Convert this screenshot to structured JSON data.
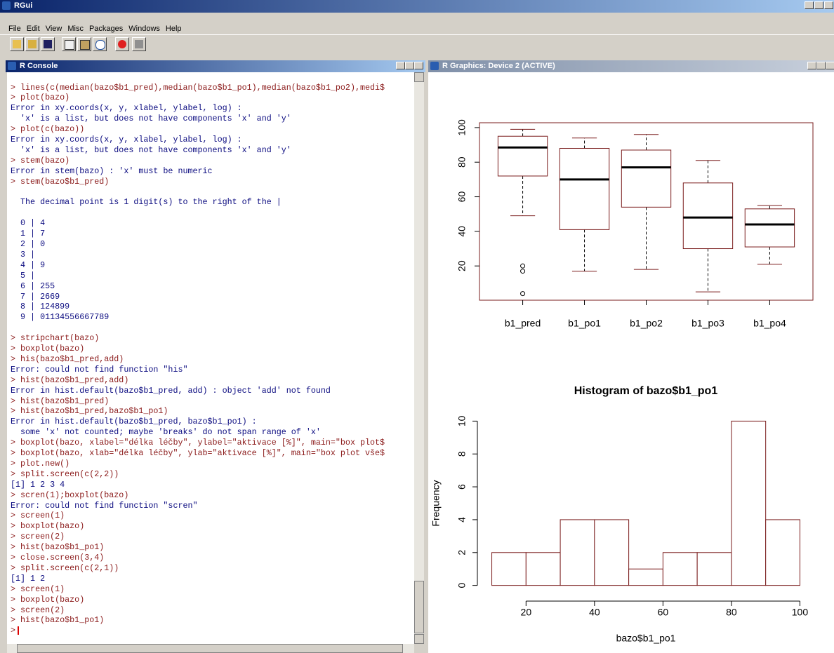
{
  "app": {
    "title": "RGui",
    "menu": [
      "File",
      "Edit",
      "View",
      "Misc",
      "Packages",
      "Windows",
      "Help"
    ]
  },
  "console": {
    "title": "R Console",
    "blocks": [
      [
        "> lines(c(median(bazo$b1_pred),median(bazo$b1_po1),median(bazo$b1_po2),medi$",
        "> plot(bazo)",
        "Error in xy.coords(x, y, xlabel, ylabel, log) :",
        "  'x' is a list, but does not have components 'x' and 'y'",
        "> plot(c(bazo))",
        "Error in xy.coords(x, y, xlabel, ylabel, log) :",
        "  'x' is a list, but does not have components 'x' and 'y'",
        "> stem(bazo)",
        "Error in stem(bazo) : 'x' must be numeric",
        "> stem(bazo$b1_pred)"
      ],
      [
        "  The decimal point is 1 digit(s) to the right of the |"
      ],
      [
        "  0 | 4",
        "  1 | 7",
        "  2 | 0",
        "  3 |",
        "  4 | 9",
        "  5 |",
        "  6 | 255",
        "  7 | 2669",
        "  8 | 124899",
        "  9 | 01134556667789"
      ],
      [
        "> stripchart(bazo)",
        "> boxplot(bazo)",
        "> his(bazo$b1_pred,add)",
        "Error: could not find function \"his\"",
        "> hist(bazo$b1_pred,add)",
        "Error in hist.default(bazo$b1_pred, add) : object 'add' not found",
        "> hist(bazo$b1_pred)",
        "> hist(bazo$b1_pred,bazo$b1_po1)",
        "Error in hist.default(bazo$b1_pred, bazo$b1_po1) :",
        "  some 'x' not counted; maybe 'breaks' do not span range of 'x'",
        "> boxplot(bazo, xlabel=\"délka léčby\", ylabel=\"aktivace [%]\", main=\"box plot$",
        "> boxplot(bazo, xlab=\"délka léčby\", ylab=\"aktivace [%]\", main=\"box plot vše$",
        "> plot.new()",
        "> split.screen(c(2,2))",
        "[1] 1 2 3 4",
        "> scren(1);boxplot(bazo)",
        "Error: could not find function \"scren\"",
        "> screen(1)",
        "> boxplot(bazo)",
        "> screen(2)",
        "> hist(bazo$b1_po1)",
        "> close.screen(3,4)",
        "> split.screen(c(2,1))",
        "[1] 1 2",
        "> screen(1)",
        "> boxplot(bazo)",
        "> screen(2)",
        "> hist(bazo$b1_po1)",
        ">"
      ]
    ]
  },
  "graphics": {
    "title": "R Graphics: Device 2 (ACTIVE)"
  },
  "chart_data": [
    {
      "type": "boxplot",
      "color": "#7a1c1c",
      "categories": [
        "b1_pred",
        "b1_po1",
        "b1_po2",
        "b1_po3",
        "b1_po4"
      ],
      "values": [
        {
          "min": 49,
          "q1": 72,
          "median": 88.5,
          "q3": 95,
          "max": 99,
          "outliers": [
            4,
            17,
            20
          ]
        },
        {
          "min": 17,
          "q1": 41,
          "median": 70,
          "q3": 88,
          "max": 94
        },
        {
          "min": 18,
          "q1": 54,
          "median": 77,
          "q3": 87,
          "max": 96
        },
        {
          "min": 5,
          "q1": 30,
          "median": 48,
          "q3": 68,
          "max": 81
        },
        {
          "min": 21,
          "q1": 31,
          "median": 44,
          "q3": 53,
          "max": 55
        }
      ],
      "ylim": [
        0.2,
        102.8
      ],
      "yticks": [
        20,
        40,
        60,
        80,
        100
      ],
      "frame": true
    },
    {
      "type": "histogram",
      "title": "Histogram of bazo$b1_po1",
      "x_label": "bazo$b1_po1",
      "y_label": "Frequency",
      "color": "#7a1c1c",
      "bins": [
        10,
        20,
        30,
        40,
        50,
        60,
        70,
        80,
        90,
        100
      ],
      "values": [
        2,
        2,
        4,
        4,
        1,
        2,
        2,
        10,
        4
      ],
      "xlim": [
        6.4,
        103.6
      ],
      "ylim": [
        -0.4,
        10.4
      ],
      "xticks": [
        20,
        40,
        60,
        80,
        100
      ],
      "yticks": [
        0,
        2,
        4,
        6,
        8,
        10
      ]
    }
  ]
}
